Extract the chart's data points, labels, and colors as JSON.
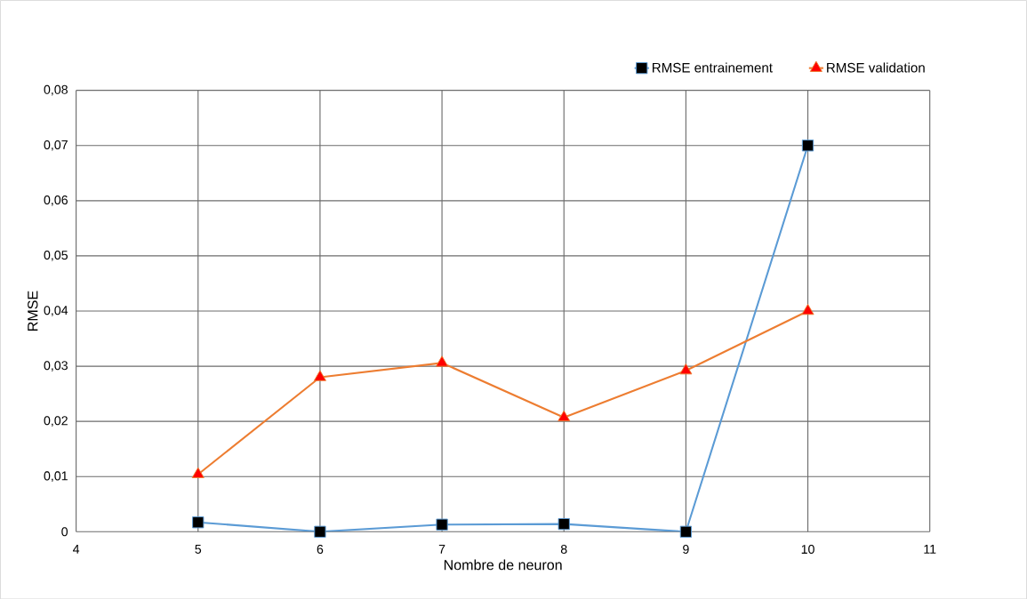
{
  "chart_data": {
    "type": "line",
    "xlabel": "Nombre de neuron",
    "ylabel": "RMSE",
    "x": [
      5,
      6,
      7,
      8,
      9,
      10
    ],
    "series": [
      {
        "name": "RMSE entrainement",
        "color": "#5b9bd5",
        "marker": "square",
        "values": [
          0.0017,
          0,
          0.0013,
          0.0014,
          0,
          0.07
        ]
      },
      {
        "name": "RMSE validation",
        "color": "#ed7d31",
        "marker": "triangle",
        "values": [
          0.0104,
          0.028,
          0.0306,
          0.0207,
          0.0292,
          0.04
        ]
      }
    ],
    "xlim": [
      4,
      11
    ],
    "xticks": [
      4,
      5,
      6,
      7,
      8,
      9,
      10,
      11
    ],
    "ylim": [
      0,
      0.08
    ],
    "yticks": [
      {
        "value": 0,
        "label": "0"
      },
      {
        "value": 0.01,
        "label": "0,01"
      },
      {
        "value": 0.02,
        "label": "0,02"
      },
      {
        "value": 0.03,
        "label": "0,03"
      },
      {
        "value": 0.04,
        "label": "0,04"
      },
      {
        "value": 0.05,
        "label": "0,05"
      },
      {
        "value": 0.06,
        "label": "0,06"
      },
      {
        "value": 0.07,
        "label": "0,07"
      },
      {
        "value": 0.08,
        "label": "0,08"
      }
    ],
    "grid": true,
    "legend": "top right",
    "line_style": "solid"
  }
}
